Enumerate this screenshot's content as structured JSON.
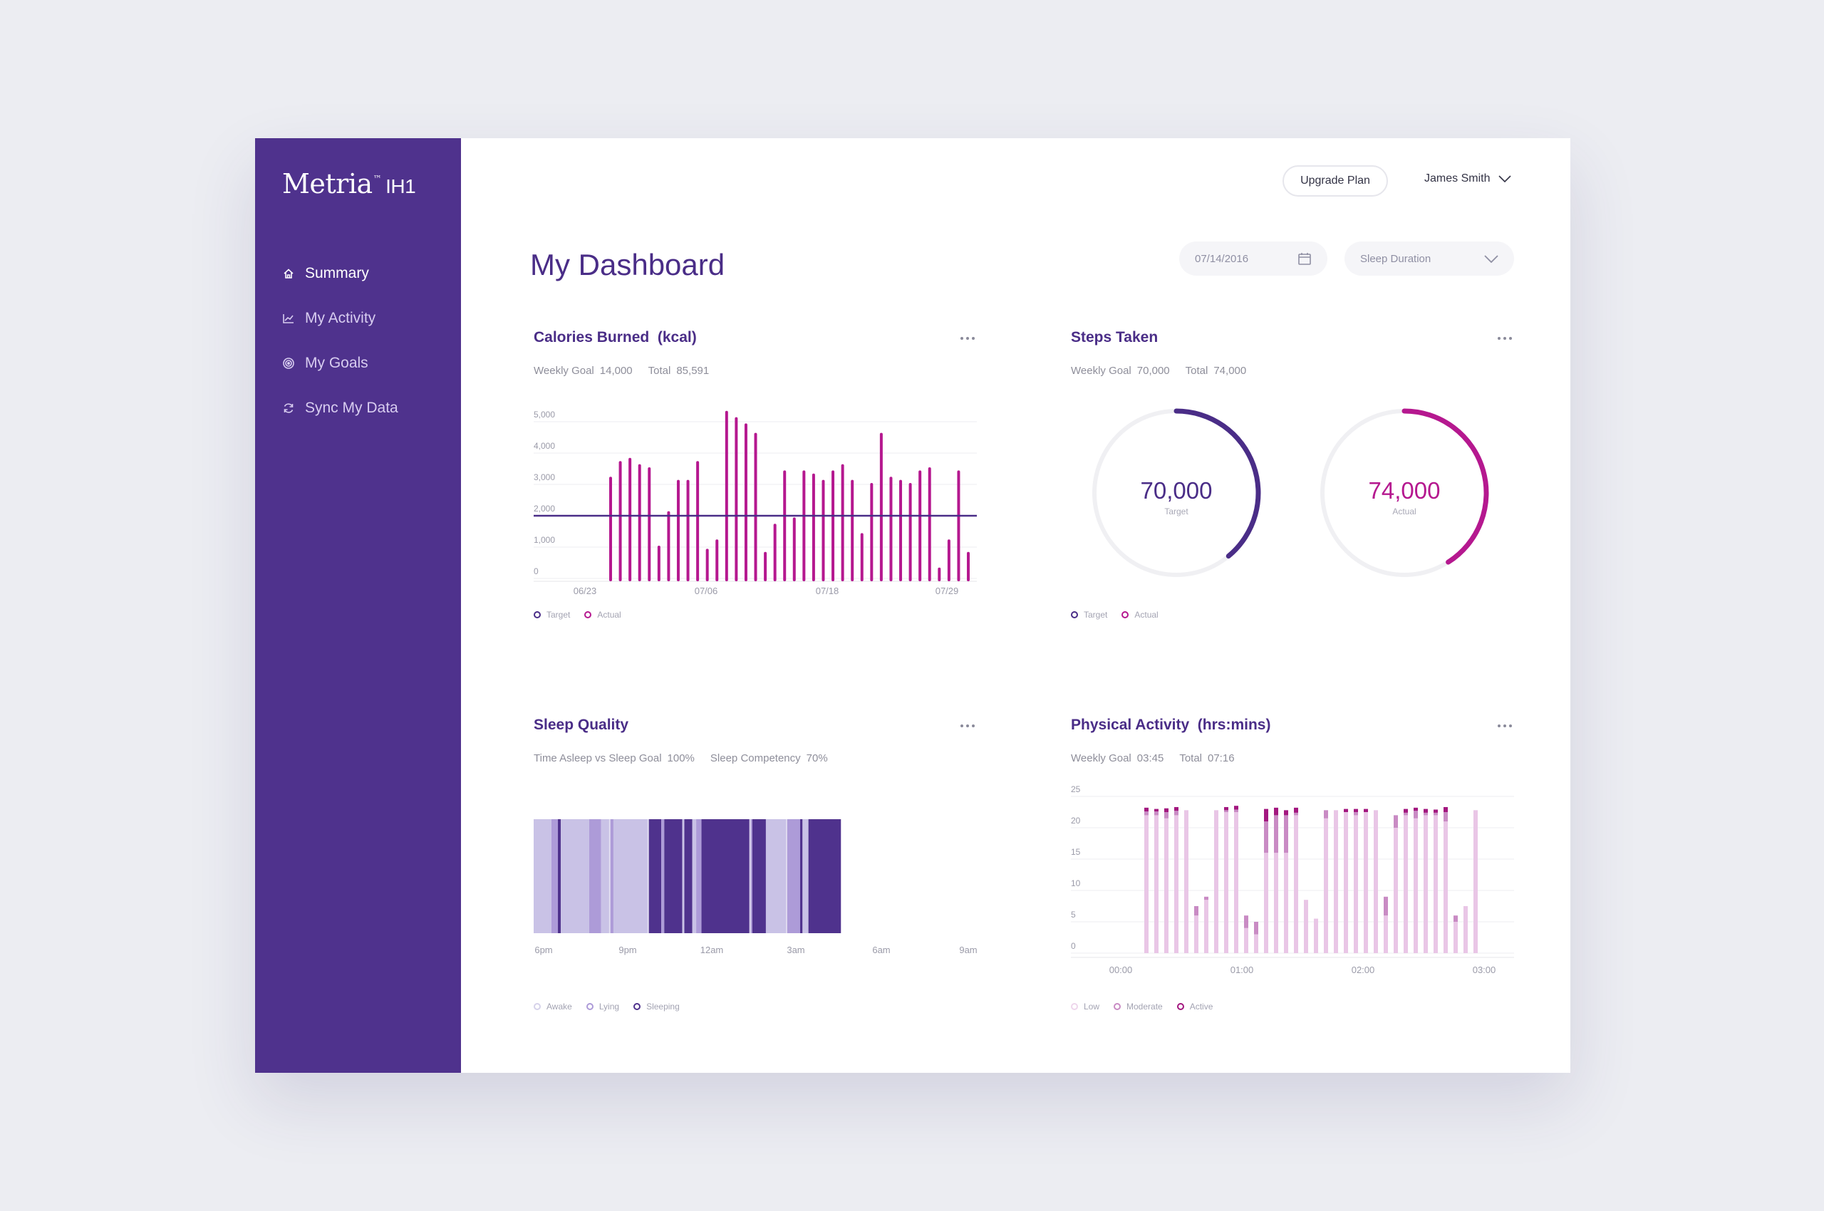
{
  "app": {
    "logo": "Metria",
    "logo_sup": "™",
    "logo_suffix": "IH1"
  },
  "sidebar": {
    "items": [
      {
        "label": "Summary",
        "icon": "home-icon",
        "active": true
      },
      {
        "label": "My Activity",
        "icon": "activity-chart-icon",
        "active": false
      },
      {
        "label": "My Goals",
        "icon": "target-icon",
        "active": false
      },
      {
        "label": "Sync My Data",
        "icon": "sync-icon",
        "active": false
      }
    ]
  },
  "header": {
    "upgrade_label": "Upgrade Plan",
    "user_name": "James Smith",
    "page_title": "My Dashboard",
    "date_value": "07/14/2016",
    "metric_select": "Sleep Duration"
  },
  "colors": {
    "brand": "#4f328d",
    "accent": "#b5188f",
    "target": "#4a2d87",
    "sleep_awake": "#c9c2e6",
    "sleep_lying": "#ad9bd8",
    "sleep_sleeping": "#4f328d",
    "activity_low": "#e9c6e6",
    "activity_moderate": "#c98bc4",
    "activity_active": "#a3177f"
  },
  "cards": {
    "calories": {
      "title": "Calories Burned  (kcal)",
      "goal_label": "Weekly Goal",
      "goal_value": "14,000",
      "total_label": "Total",
      "total_value": "85,591",
      "legend": [
        "Target",
        "Actual"
      ]
    },
    "steps": {
      "title": "Steps Taken",
      "goal_label": "Weekly Goal",
      "goal_value": "70,000",
      "total_label": "Total",
      "total_value": "74,000",
      "legend": [
        "Target",
        "Actual"
      ]
    },
    "sleep": {
      "title": "Sleep Quality",
      "stat1_label": "Time Asleep vs Sleep Goal",
      "stat1_value": "100%",
      "stat2_label": "Sleep Competency",
      "stat2_value": "70%",
      "legend": [
        "Awake",
        "Lying",
        "Sleeping"
      ]
    },
    "activity": {
      "title": "Physical Activity  (hrs:mins)",
      "goal_label": "Weekly Goal",
      "goal_value": "03:45",
      "total_label": "Total",
      "total_value": "07:16",
      "legend": [
        "Low",
        "Moderate",
        "Active"
      ]
    }
  },
  "chart_data": [
    {
      "type": "bar",
      "title": "Calories Burned  (kcal)",
      "x_ticks": [
        "06/23",
        "07/06",
        "07/18",
        "07/29"
      ],
      "ylim": [
        0,
        5000
      ],
      "y_ticks": [
        "5,000",
        "4,000",
        "3,000",
        "2,000",
        "1,000",
        "0"
      ],
      "target": 2000,
      "values": [
        3200,
        3700,
        3800,
        3600,
        3500,
        1000,
        2100,
        3100,
        3100,
        3700,
        900,
        1200,
        5300,
        5100,
        4900,
        4600,
        800,
        1700,
        3400,
        1900,
        3400,
        3300,
        3100,
        3400,
        3600,
        3100,
        1400,
        3000,
        4600,
        3200,
        3100,
        3000,
        3400,
        3500,
        300,
        1200,
        3400,
        800
      ],
      "series": [
        {
          "name": "Actual"
        },
        {
          "name": "Target"
        }
      ]
    },
    {
      "type": "pie",
      "title": "Steps Taken",
      "items": [
        {
          "label": "Target",
          "value": "70,000",
          "fraction": 0.39
        },
        {
          "label": "Actual",
          "value": "74,000",
          "fraction": 0.41
        }
      ]
    },
    {
      "type": "heatmap",
      "title": "Sleep Quality",
      "x_ticks": [
        "6pm",
        "9pm",
        "12am",
        "3am",
        "6am",
        "9am"
      ],
      "start_hour": 18,
      "segments": [
        {
          "state": "awake",
          "start": 0,
          "end": 0.6
        },
        {
          "state": "lying",
          "start": 0.6,
          "end": 0.82
        },
        {
          "state": "sleeping",
          "start": 0.82,
          "end": 0.92
        },
        {
          "state": "awake",
          "start": 0.92,
          "end": 1.88
        },
        {
          "state": "lying",
          "start": 1.88,
          "end": 2.28
        },
        {
          "state": "awake",
          "start": 2.28,
          "end": 2.6
        },
        {
          "state": "lying",
          "start": 2.6,
          "end": 2.7
        },
        {
          "state": "awake",
          "start": 2.7,
          "end": 3.9
        },
        {
          "state": "sleeping",
          "start": 3.9,
          "end": 4.32
        },
        {
          "state": "lying",
          "start": 4.32,
          "end": 4.42
        },
        {
          "state": "sleeping",
          "start": 4.42,
          "end": 5.03
        },
        {
          "state": "awake",
          "start": 5.03,
          "end": 5.1
        },
        {
          "state": "sleeping",
          "start": 5.1,
          "end": 5.37
        },
        {
          "state": "awake",
          "start": 5.37,
          "end": 5.5
        },
        {
          "state": "lying",
          "start": 5.5,
          "end": 5.68
        },
        {
          "state": "sleeping",
          "start": 5.68,
          "end": 7.3
        },
        {
          "state": "lying",
          "start": 7.3,
          "end": 7.4
        },
        {
          "state": "sleeping",
          "start": 7.4,
          "end": 7.86
        },
        {
          "state": "awake",
          "start": 7.86,
          "end": 8.58
        },
        {
          "state": "lying",
          "start": 8.58,
          "end": 9.02
        },
        {
          "state": "sleeping",
          "start": 9.02,
          "end": 9.1
        },
        {
          "state": "awake",
          "start": 9.1,
          "end": 9.3
        },
        {
          "state": "sleeping",
          "start": 9.3,
          "end": 10.4
        }
      ]
    },
    {
      "type": "bar",
      "title": "Physical Activity  (hrs:mins)",
      "x_ticks": [
        "00:00",
        "01:00",
        "02:00",
        "03:00"
      ],
      "ylim": [
        0,
        25
      ],
      "y_ticks": [
        "25",
        "20",
        "15",
        "10",
        "5",
        "0"
      ],
      "bars": [
        {
          "low": 22,
          "moderate": 0.6,
          "active": 0.6
        },
        {
          "low": 22,
          "moderate": 0.6,
          "active": 0.4
        },
        {
          "low": 21.5,
          "moderate": 1,
          "active": 0.6
        },
        {
          "low": 22,
          "moderate": 0.7,
          "active": 0.6
        },
        {
          "low": 22.8,
          "moderate": 0,
          "active": 0
        },
        {
          "low": 6,
          "moderate": 1.5,
          "active": 0
        },
        {
          "low": 8.5,
          "moderate": 0.5,
          "active": 0
        },
        {
          "low": 22.8,
          "moderate": 0,
          "active": 0
        },
        {
          "low": 22.5,
          "moderate": 0.3,
          "active": 0.5
        },
        {
          "low": 22.5,
          "moderate": 0.4,
          "active": 0.6
        },
        {
          "low": 4,
          "moderate": 2,
          "active": 0
        },
        {
          "low": 3,
          "moderate": 2,
          "active": 0
        },
        {
          "low": 16,
          "moderate": 5,
          "active": 2
        },
        {
          "low": 16,
          "moderate": 6,
          "active": 1.2
        },
        {
          "low": 16,
          "moderate": 6,
          "active": 0.8
        },
        {
          "low": 22,
          "moderate": 0.4,
          "active": 0.8
        },
        {
          "low": 8.5,
          "moderate": 0,
          "active": 0
        },
        {
          "low": 5.5,
          "moderate": 0,
          "active": 0
        },
        {
          "low": 21.5,
          "moderate": 1.3,
          "active": 0
        },
        {
          "low": 22.8,
          "moderate": 0,
          "active": 0
        },
        {
          "low": 22.5,
          "moderate": 0,
          "active": 0.5
        },
        {
          "low": 22,
          "moderate": 0.5,
          "active": 0.5
        },
        {
          "low": 22.5,
          "moderate": 0,
          "active": 0.5
        },
        {
          "low": 22.8,
          "moderate": 0,
          "active": 0
        },
        {
          "low": 6,
          "moderate": 3,
          "active": 0
        },
        {
          "low": 20,
          "moderate": 2,
          "active": 0
        },
        {
          "low": 22,
          "moderate": 0.4,
          "active": 0.6
        },
        {
          "low": 21.5,
          "moderate": 1.2,
          "active": 0.5
        },
        {
          "low": 22,
          "moderate": 0.4,
          "active": 0.6
        },
        {
          "low": 22,
          "moderate": 0.4,
          "active": 0.5
        },
        {
          "low": 21,
          "moderate": 1.5,
          "active": 0.8
        },
        {
          "low": 5,
          "moderate": 1,
          "active": 0
        },
        {
          "low": 7.5,
          "moderate": 0,
          "active": 0
        },
        {
          "low": 22.8,
          "moderate": 0,
          "active": 0
        }
      ]
    }
  ]
}
